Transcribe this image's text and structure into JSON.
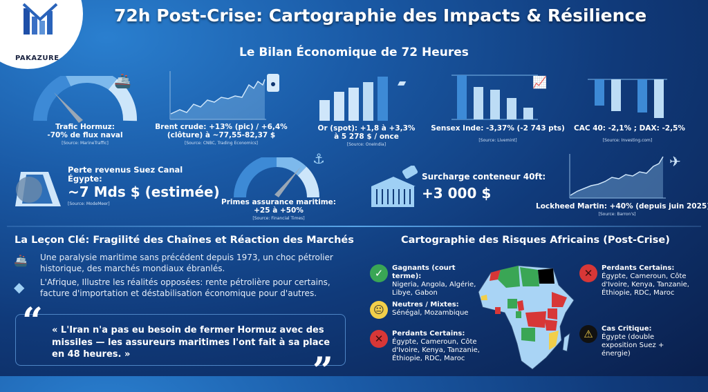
{
  "brand": {
    "name": "PAKAZURE"
  },
  "title": "72h Post-Crise: Cartographie des Impacts & Résilience",
  "subtitle": "Le Bilan Économique de 72 Heures",
  "metrics": [
    {
      "label": "Trafic Hormuz:",
      "value": "-70% de flux naval",
      "source": "[Source: MarineTraffic]"
    },
    {
      "label": "Brent crude: +13% (pic) / +6,4%",
      "value": "(clôture) à ~77,55-82,37 $",
      "source": "[Source: CNBC, Trading Economics]"
    },
    {
      "label": "Or (spot): +1,8 à +3,3%",
      "value": "à 5 278 $ / once",
      "source": "[Source: OneIndia]"
    },
    {
      "label": "Sensex Inde: -3,37% (-2 743 pts)",
      "source": "[Source: Livemint]"
    },
    {
      "label": "CAC 40: -2,1% ; DAX: -2,5%",
      "source": "[Source: Investing.com]"
    },
    {
      "label": "Perte revenus Suez Canal",
      "label2": "Égypte:",
      "value": "~7 Mds $ (estimée)",
      "source": "[Source: ModeMeer]"
    },
    {
      "label": "Primes assurance maritime:",
      "value": "+25 à +50%",
      "source": "[Source: Financial Times]"
    },
    {
      "label": "Surcharge conteneur 40ft:",
      "value": "+3 000 $"
    },
    {
      "label": "Lockheed Martin: +40% (depuis juin 2025)",
      "source": "[Source: Barron's]"
    }
  ],
  "gauges": {
    "hormuz_reduction_pct": 70,
    "insurance_level_pct": 70
  },
  "lesson": {
    "heading": "La Leçon Clé: Fragilité des Chaînes et Réaction des Marchés",
    "bullets": [
      "Une paralysie maritime sans précédent depuis 1973, un choc pétrolier historique, des marchés mondiaux ébranlés.",
      "L'Afrique, Illustre les réalités opposées: rente pétrolière pour certains, facture d'importation et déstabilisation économique pour d'autres."
    ],
    "quote": "« L'Iran n'a pas eu besoin de fermer Hormuz avec des missiles — les assureurs maritimes l'ont fait à sa place en 48 heures. »",
    "open_mark": "“",
    "close_mark": "”"
  },
  "africa": {
    "heading": "Cartographie des Risques Africains (Post-Crise)",
    "groups": [
      {
        "title": "Gagnants (court terme):",
        "text": "Nigeria, Angola, Algérie, Libye, Gabon",
        "icon": "check-icon",
        "color": "#3aa655"
      },
      {
        "title": "Neutres / Mixtes:",
        "text": "Sénégal, Mozambique",
        "icon": "neutral-face-icon",
        "color": "#f2cf4a"
      },
      {
        "title": "Perdants Certains:",
        "text": "Égypte, Cameroun, Côte d'Ivoire, Kenya, Tanzanie, Éthiopie, RDC, Maroc",
        "icon": "x-icon",
        "color": "#d73737"
      },
      {
        "title": "Perdants Certains:",
        "text": "Égypte, Cameroun, Côte d'Ivoire, Kenya, Tanzanie, Éthiopie, RDC, Maroc",
        "icon": "x-icon",
        "color": "#d73737"
      },
      {
        "title": "Cas Critique:",
        "text": "Égypte (double exposition Suez + énergie)",
        "icon": "warning-icon",
        "color": "#f2cf4a"
      }
    ]
  },
  "colors": {
    "accent": "#5aa6e8",
    "light": "#a9d4f5",
    "winner": "#3aa655",
    "neutral": "#f2cf4a",
    "loser": "#d73737",
    "critical": "#000000"
  }
}
